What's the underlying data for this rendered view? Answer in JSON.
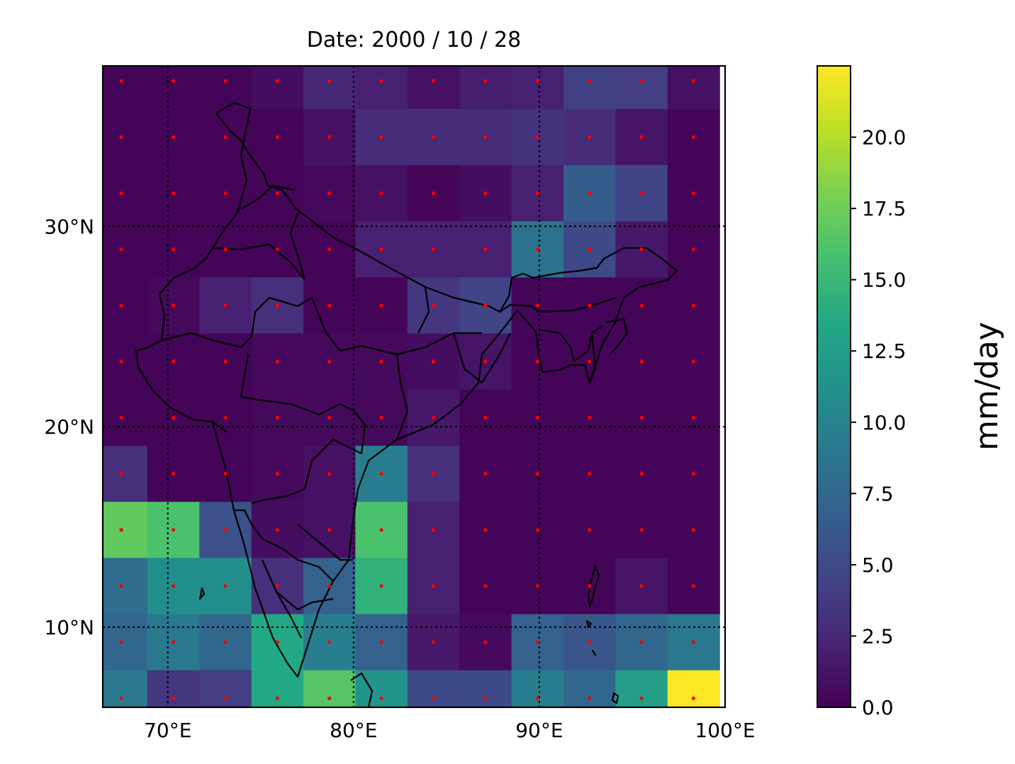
{
  "title": "Date: 2000 / 10 / 28",
  "chart_data": {
    "type": "heatmap",
    "title": "Date: 2000 / 10 / 28",
    "map_extent": {
      "lon": [
        66.5,
        100
      ],
      "lat": [
        6,
        38
      ]
    },
    "lon_ticks": [
      {
        "value": 70,
        "label": "70°E"
      },
      {
        "value": 80,
        "label": "80°E"
      },
      {
        "value": 90,
        "label": "90°E"
      },
      {
        "value": 100,
        "label": "100°E"
      }
    ],
    "lat_ticks": [
      {
        "value": 10,
        "label": "10°N"
      },
      {
        "value": 20,
        "label": "20°N"
      },
      {
        "value": 30,
        "label": "30°N"
      }
    ],
    "grid": "dotted",
    "cell_centers_lon": [
      67.5,
      70.3,
      73.1,
      75.9,
      78.7,
      81.5,
      84.3,
      87.1,
      89.9,
      92.7,
      95.5,
      98.3
    ],
    "cell_centers_lat": [
      37.25,
      34.45,
      31.65,
      28.85,
      26.05,
      23.25,
      20.45,
      17.65,
      14.85,
      12.05,
      9.25,
      6.45
    ],
    "values_mm_per_day": [
      [
        0.2,
        0.2,
        0.2,
        0.8,
        2.5,
        2.0,
        1.0,
        1.8,
        2.0,
        4.2,
        4.0,
        1.0
      ],
      [
        0.2,
        0.2,
        0.2,
        0.2,
        1.0,
        2.8,
        2.8,
        2.8,
        3.2,
        2.8,
        1.2,
        0.2
      ],
      [
        0.2,
        0.2,
        0.2,
        0.2,
        0.5,
        1.0,
        0.3,
        0.8,
        2.0,
        6.5,
        4.5,
        0.2
      ],
      [
        0.2,
        0.2,
        0.2,
        0.2,
        0.2,
        2.0,
        2.0,
        2.0,
        8.5,
        5.0,
        1.5,
        0.2
      ],
      [
        0.2,
        0.5,
        2.0,
        3.0,
        0.2,
        0.2,
        3.5,
        4.5,
        0.3,
        0.2,
        0.2,
        0.2
      ],
      [
        0.2,
        0.2,
        0.2,
        0.5,
        0.5,
        0.5,
        0.8,
        1.2,
        0.2,
        0.2,
        0.2,
        0.2
      ],
      [
        0.2,
        0.2,
        0.2,
        0.5,
        0.5,
        0.5,
        1.5,
        0.2,
        0.2,
        0.2,
        0.2,
        0.2
      ],
      [
        3.0,
        0.2,
        0.2,
        0.5,
        1.0,
        9.5,
        3.0,
        0.2,
        0.2,
        0.2,
        0.2,
        0.2
      ],
      [
        17.0,
        16.0,
        5.5,
        0.8,
        1.0,
        16.0,
        2.0,
        0.2,
        0.2,
        0.2,
        0.2,
        0.2
      ],
      [
        8.0,
        11.0,
        11.0,
        3.0,
        7.0,
        14.5,
        2.0,
        0.2,
        0.2,
        0.2,
        1.2,
        0.2
      ],
      [
        7.5,
        9.0,
        7.5,
        13.5,
        9.5,
        7.0,
        1.5,
        0.5,
        7.0,
        6.0,
        7.5,
        9.0
      ],
      [
        9.0,
        3.5,
        4.0,
        13.5,
        16.5,
        11.5,
        5.0,
        5.0,
        9.5,
        7.5,
        12.5,
        22.5
      ]
    ],
    "colorbar": {
      "label": "mm/day",
      "range": [
        0,
        22.5
      ],
      "ticks": [
        {
          "value": 0,
          "label": "0.0"
        },
        {
          "value": 2.5,
          "label": "2.5"
        },
        {
          "value": 5,
          "label": "5.0"
        },
        {
          "value": 7.5,
          "label": "7.5"
        },
        {
          "value": 10,
          "label": "10.0"
        },
        {
          "value": 12.5,
          "label": "12.5"
        },
        {
          "value": 15,
          "label": "15.0"
        },
        {
          "value": 17.5,
          "label": "17.5"
        },
        {
          "value": 20,
          "label": "20.0"
        }
      ],
      "colormap": "viridis"
    },
    "point_marker_color": "#ff0000",
    "boundary_color": "#000000"
  }
}
